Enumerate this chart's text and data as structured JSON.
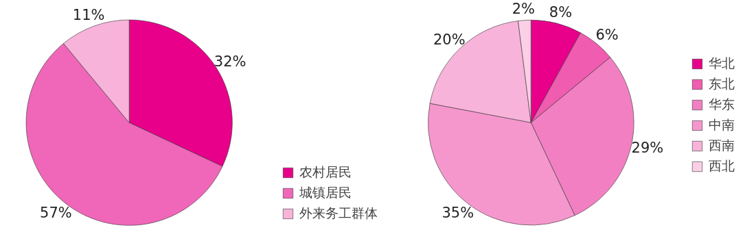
{
  "chart_data": [
    {
      "type": "pie",
      "categories": [
        "农村居民",
        "城镇居民",
        "外来务工群体"
      ],
      "values": [
        32,
        57,
        11
      ],
      "colors": [
        "#e8008b",
        "#f066b8",
        "#f8b3da"
      ],
      "value_labels": [
        "32%",
        "57%",
        "11%"
      ],
      "legend": "bottom right"
    },
    {
      "type": "pie",
      "categories": [
        "华北",
        "东北",
        "华东",
        "中南",
        "西南",
        "西北"
      ],
      "values": [
        8,
        6,
        29,
        35,
        20,
        2
      ],
      "colors": [
        "#e8008b",
        "#f05cb0",
        "#f27fc2",
        "#f597cd",
        "#f8b3da",
        "#fbcfe6"
      ],
      "value_labels": [
        "8%",
        "6%",
        "29%",
        "35%",
        "20%",
        "2%"
      ],
      "legend": "right"
    }
  ]
}
